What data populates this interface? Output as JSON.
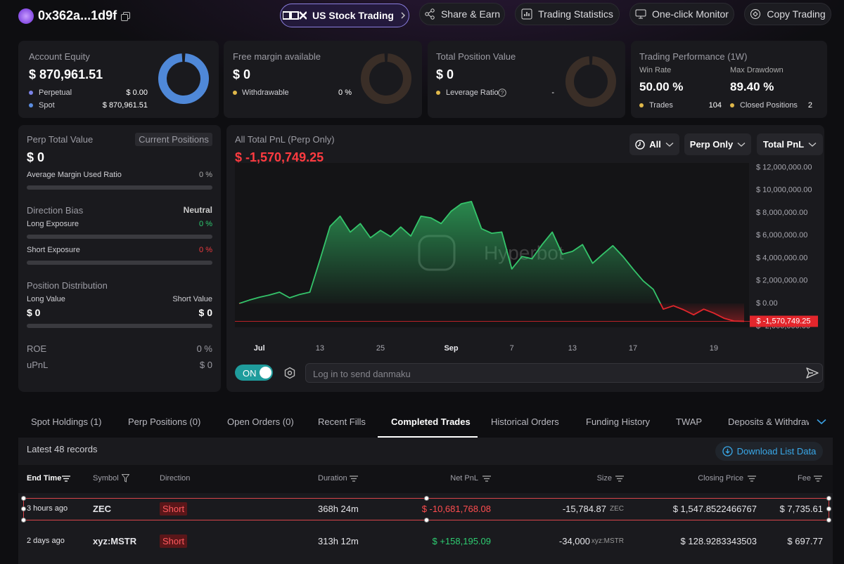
{
  "header": {
    "address": "0x362a...1d9f",
    "buttons": [
      "US Stock Trading",
      "Share & Earn",
      "Trading Statistics",
      "One-click Monitor",
      "Copy Trading"
    ]
  },
  "summary": {
    "account_equity": {
      "title": "Account Equity",
      "value": "$ 870,961.51",
      "rows": [
        {
          "label": "Perpetual",
          "value": "$ 0.00"
        },
        {
          "label": "Spot",
          "value": "$ 870,961.51"
        }
      ]
    },
    "free_margin": {
      "title": "Free margin available",
      "value": "$ 0",
      "rows": [
        {
          "label": "Withdrawable",
          "value": "0 %"
        }
      ]
    },
    "position_value": {
      "title": "Total Position Value",
      "value": "$ 0",
      "rows": [
        {
          "label": "Leverage Ratio",
          "value": "-"
        }
      ]
    },
    "performance": {
      "title": "Trading Performance (1W)",
      "stats": [
        {
          "label": "Win Rate",
          "value": "50.00 %"
        },
        {
          "label": "Max Drawdown",
          "value": "89.40 %"
        }
      ],
      "rows": [
        {
          "label": "Trades",
          "value": "104"
        },
        {
          "label": "Closed Positions",
          "value": "2"
        }
      ]
    }
  },
  "perp_panel": {
    "title": "Perp Total Value",
    "badge": "Current Positions",
    "value": "$ 0",
    "margin": {
      "label": "Average Margin Used Ratio",
      "value": "0 %"
    },
    "bias": {
      "title": "Direction Bias",
      "value": "Neutral",
      "long": {
        "label": "Long Exposure",
        "value": "0 %",
        "color": "#2ecc71"
      },
      "short": {
        "label": "Short Exposure",
        "value": "0 %",
        "color": "#ef3b3f"
      }
    },
    "distribution": {
      "title": "Position Distribution",
      "long_label": "Long Value",
      "short_label": "Short Value",
      "long_value": "$ 0",
      "short_value": "$ 0"
    },
    "roe": {
      "label": "ROE",
      "value": "0 %"
    },
    "upnl": {
      "label": "uPnL",
      "value": "$ 0"
    }
  },
  "pnl_chart": {
    "type": "area",
    "title": "All Total PnL (Perp Only)",
    "total": "$ -1,570,749.25",
    "watermark": "Hyperbot",
    "filters": [
      "All",
      "Perp Only",
      "Total PnL"
    ],
    "categories": [
      null,
      null,
      "Jul",
      null,
      null,
      null,
      null,
      null,
      "13",
      null,
      null,
      null,
      null,
      null,
      "25",
      null,
      null,
      null,
      null,
      null,
      null,
      "Sep",
      null,
      null,
      null,
      null,
      null,
      "7",
      null,
      null,
      null,
      null,
      null,
      "13",
      null,
      null,
      null,
      null,
      null,
      "17",
      null,
      null,
      null,
      null,
      null,
      null,
      null,
      "19",
      null,
      null,
      null
    ],
    "values": [
      0,
      300000,
      550000,
      750000,
      1000000,
      500000,
      800000,
      1000000,
      3850000,
      6800000,
      7700000,
      6300000,
      7050000,
      5800000,
      6450000,
      5900000,
      6750000,
      5950000,
      7700000,
      7550000,
      7050000,
      8150000,
      8800000,
      9000000,
      6600000,
      6200000,
      6300000,
      3050000,
      4150000,
      3950000,
      5200000,
      6300000,
      4350000,
      4600000,
      5200000,
      3550000,
      4350000,
      5100000,
      4150000,
      3050000,
      2000000,
      1250000,
      -500000,
      -200000,
      -550000,
      -1000000,
      -500000,
      -850000,
      -1300000,
      -1550000,
      -1570749.25
    ],
    "ylim": [
      -2100000,
      12400000
    ],
    "yticks": [
      {
        "value": 12000000,
        "label": "$ 12,000,000.00"
      },
      {
        "value": 10000000,
        "label": "$ 10,000,000.00"
      },
      {
        "value": 8000000,
        "label": "$ 8,000,000.00"
      },
      {
        "value": 6000000,
        "label": "$ 6,000,000.00"
      },
      {
        "value": 4000000,
        "label": "$ 4,000,000.00"
      },
      {
        "value": 2000000,
        "label": "$ 2,000,000.00"
      },
      {
        "value": 0,
        "label": "$ 0.00"
      },
      {
        "value": -2000000,
        "label": "$ -2,000,000.00"
      }
    ],
    "colors": {
      "positive": "#34c46a",
      "negative": "#e3262c"
    }
  },
  "danmaku": {
    "toggle": "ON",
    "placeholder": "Log in to send danmaku"
  },
  "tabs": {
    "items": [
      "Spot Holdings (1)",
      "Perp Positions (0)",
      "Open Orders (0)",
      "Recent Fills",
      "Completed Trades",
      "Historical Orders",
      "Funding History",
      "TWAP",
      "Deposits & Withdraw"
    ],
    "active": 4
  },
  "table": {
    "summary": "Latest 48 records",
    "download": "Download List Data",
    "columns": [
      "End Time",
      "Symbol",
      "Direction",
      "Duration",
      "Net PnL",
      "Size",
      "Closing Price",
      "Fee"
    ],
    "rows": [
      {
        "time": "3 hours ago",
        "symbol": "ZEC",
        "direction": "Short",
        "duration": "368h 24m",
        "pnl": {
          "text": "$ -10,681,768.08",
          "color": "#ff4d4f"
        },
        "size": {
          "value": "-15,784.87",
          "unit": "ZEC"
        },
        "price": "$ 1,547.8522466767",
        "fee": "$ 7,735.61"
      },
      {
        "time": "2 days ago",
        "symbol": "xyz:MSTR",
        "direction": "Short",
        "duration": "313h 12m",
        "pnl": {
          "text": "$ +158,195.09",
          "color": "#2ecc71"
        },
        "size": {
          "value": "-34,000",
          "unit": "xyz:MSTR"
        },
        "price": "$ 128.9283343503",
        "fee": "$ 697.77"
      }
    ]
  }
}
